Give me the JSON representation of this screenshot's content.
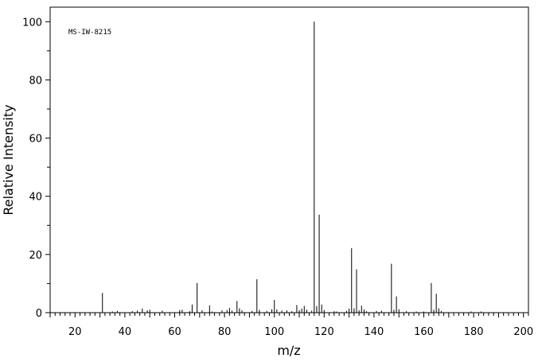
{
  "chart_data": {
    "type": "bar",
    "title": "",
    "annotation": "MS-IW-8215",
    "xlabel": "m/z",
    "ylabel": "Relative Intensity",
    "xlim": [
      10,
      202
    ],
    "ylim": [
      0,
      105
    ],
    "x_ticks": [
      20,
      40,
      60,
      80,
      100,
      120,
      140,
      160,
      180,
      200
    ],
    "y_ticks": [
      0,
      20,
      40,
      60,
      80,
      100
    ],
    "grid": false,
    "series": [
      {
        "x": [
          31,
          35,
          37,
          43,
          45,
          47,
          49,
          50,
          55,
          62,
          63,
          66,
          67,
          69,
          71,
          74,
          75,
          79,
          81,
          82,
          83,
          85,
          86,
          87,
          91,
          93,
          94,
          97,
          99,
          100,
          101,
          103,
          105,
          107,
          109,
          110,
          111,
          112,
          113,
          115,
          116,
          117,
          118,
          119,
          120,
          124,
          125,
          129,
          130,
          131,
          132,
          133,
          134,
          135,
          136,
          137,
          141,
          143,
          147,
          148,
          149,
          150,
          153,
          157,
          160,
          163,
          164,
          165,
          166,
          167,
          179,
          183
        ],
        "y": [
          6.8,
          0.4,
          0.6,
          0.5,
          0.7,
          1.4,
          0.8,
          1.0,
          0.7,
          0.9,
          1.0,
          0.5,
          2.8,
          10.2,
          0.8,
          2.5,
          0.4,
          0.8,
          0.9,
          1.6,
          0.7,
          4.0,
          1.5,
          0.8,
          0.6,
          11.5,
          1.0,
          0.6,
          1.2,
          4.4,
          1.1,
          0.7,
          0.8,
          0.5,
          2.6,
          0.9,
          1.4,
          2.3,
          1.0,
          0.7,
          100,
          2.3,
          33.7,
          2.8,
          0.9,
          0.5,
          0.4,
          0.6,
          1.4,
          22.2,
          1.5,
          14.9,
          0.8,
          2.4,
          1.1,
          0.5,
          0.6,
          0.7,
          16.8,
          1.0,
          5.6,
          1.2,
          0.5,
          0.4,
          0.4,
          10.2,
          1.0,
          6.5,
          1.5,
          0.6,
          0.4,
          0.4
        ]
      }
    ]
  }
}
